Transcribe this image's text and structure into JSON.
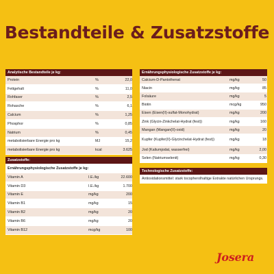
{
  "title": "Bestandteile & Zusatzstoffe",
  "analytische": {
    "header": "Analytische Bestandteile je kg:",
    "rows": [
      {
        "name": "Protein",
        "unit": "%",
        "value": "22,0"
      },
      {
        "name": "Fettgehalt",
        "unit": "%",
        "value": "11,0"
      },
      {
        "name": "Rohfaser",
        "unit": "%",
        "value": "2,5"
      },
      {
        "name": "Rohasche",
        "unit": "%",
        "value": "6,1"
      },
      {
        "name": "Calcium",
        "unit": "%",
        "value": "1,25"
      },
      {
        "name": "Phosphor",
        "unit": "%",
        "value": "0,85"
      },
      {
        "name": "Natrium",
        "unit": "%",
        "value": "0,45"
      },
      {
        "name": "metabolisierbare Energie pro kg",
        "unit": "MJ",
        "value": "15,2"
      },
      {
        "name": "metabolisierbare Energie pro kg",
        "unit": "kcal",
        "value": "3.625"
      }
    ]
  },
  "zusatzstoffe": {
    "header": "Zusatzstoffe:",
    "subheader": "Ernährungsphysiologische Zusatzstoffe je kg:",
    "rows": [
      {
        "name": "Vitamin A",
        "unit": "I.E./kg",
        "value": "22.600"
      },
      {
        "name": "Vitamin D3",
        "unit": "I.E./kg",
        "value": "1.700"
      },
      {
        "name": "Vitamin E",
        "unit": "mg/kg",
        "value": "200"
      },
      {
        "name": "Vitamin B1",
        "unit": "mg/kg",
        "value": "15"
      },
      {
        "name": "Vitamin B2",
        "unit": "mg/kg",
        "value": "20"
      },
      {
        "name": "Vitamin B6",
        "unit": "mg/kg",
        "value": "20"
      },
      {
        "name": "Vitamin B12",
        "unit": "mcg/kg",
        "value": "100"
      }
    ]
  },
  "ernaehrung": {
    "header": "Ernährungsphysiologische Zusatzstoffe je kg:",
    "rows": [
      {
        "name": "Calcium-D-Pantothenat",
        "unit": "mg/kg",
        "value": "50"
      },
      {
        "name": "Niacin",
        "unit": "mg/kg",
        "value": "85"
      },
      {
        "name": "Folsäure",
        "unit": "mg/kg",
        "value": "5"
      },
      {
        "name": "Biotin",
        "unit": "mcg/kg",
        "value": "950"
      },
      {
        "name": "Eisen (Eisen(II)-sulfat-Monohydrat)",
        "unit": "mg/kg",
        "value": "200"
      },
      {
        "name": "Zink (Glycin-Zinkchelat-Hydrat (fest))",
        "unit": "mg/kg",
        "value": "160"
      },
      {
        "name": "Mangan (Mangan(II)-oxid)",
        "unit": "mg/kg",
        "value": "20"
      },
      {
        "name": "Kupfer (Kupfer(II)-Glycinchelat-Hydrat (fest))",
        "unit": "mg/kg",
        "value": "18"
      },
      {
        "name": "Jod (Kaliumjodat, wasserfrei)",
        "unit": "mg/kg",
        "value": "2,00"
      },
      {
        "name": "Selen (Natriumselenit)",
        "unit": "mg/kg",
        "value": "0,30"
      }
    ]
  },
  "technologisch": {
    "header": "Technologische Zusatzstoffe:",
    "text": "Antioxidationsmittel: stark tocopherolhaltige Extrakte natürlichen Ursprungs."
  },
  "logo": "Josera"
}
